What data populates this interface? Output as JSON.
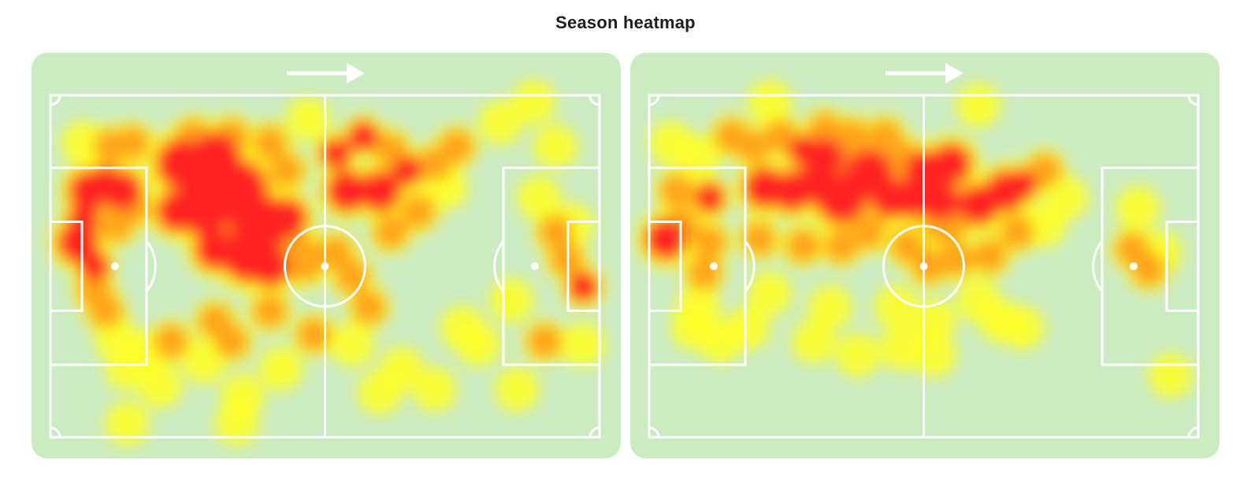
{
  "page": {
    "title": "Season heatmap"
  },
  "colors": {
    "pitch": "#cdebc2",
    "lines": "#ffffff",
    "heat_low": "#ffff22",
    "heat_mid": "#ffa51c",
    "heat_high": "#ff2121",
    "title_text": "#1e1e1e"
  },
  "icons": {
    "direction": "arrow-right-icon"
  },
  "heatmaps": [
    {
      "id": "left",
      "attack_direction": "right",
      "hotspots": [
        [
          0.05,
          0.43,
          0.04,
          1
        ],
        [
          0.06,
          0.36,
          0.03,
          0.9
        ],
        [
          0.08,
          0.5,
          0.03,
          0.9
        ],
        [
          0.07,
          0.28,
          0.04,
          0.8
        ],
        [
          0.1,
          0.25,
          0.03,
          0.8
        ],
        [
          0.13,
          0.28,
          0.04,
          0.8
        ],
        [
          0.12,
          0.38,
          0.03,
          0.7
        ],
        [
          0.15,
          0.33,
          0.03,
          0.6
        ],
        [
          0.08,
          0.57,
          0.03,
          0.6
        ],
        [
          0.1,
          0.63,
          0.03,
          0.5
        ],
        [
          0.11,
          0.15,
          0.03,
          0.5
        ],
        [
          0.15,
          0.14,
          0.03,
          0.5
        ],
        [
          0.06,
          0.14,
          0.03,
          0.4
        ],
        [
          0.24,
          0.2,
          0.05,
          1
        ],
        [
          0.3,
          0.18,
          0.05,
          0.9
        ],
        [
          0.28,
          0.32,
          0.06,
          1
        ],
        [
          0.34,
          0.28,
          0.06,
          1
        ],
        [
          0.38,
          0.38,
          0.06,
          1
        ],
        [
          0.36,
          0.47,
          0.05,
          1
        ],
        [
          0.4,
          0.5,
          0.04,
          0.9
        ],
        [
          0.23,
          0.34,
          0.04,
          0.9
        ],
        [
          0.3,
          0.45,
          0.04,
          0.9
        ],
        [
          0.43,
          0.36,
          0.04,
          0.8
        ],
        [
          0.46,
          0.48,
          0.04,
          0.7
        ],
        [
          0.33,
          0.12,
          0.03,
          0.6
        ],
        [
          0.26,
          0.12,
          0.03,
          0.6
        ],
        [
          0.4,
          0.14,
          0.03,
          0.6
        ],
        [
          0.43,
          0.22,
          0.03,
          0.6
        ],
        [
          0.52,
          0.17,
          0.03,
          0.9
        ],
        [
          0.57,
          0.12,
          0.03,
          0.8
        ],
        [
          0.54,
          0.28,
          0.04,
          1
        ],
        [
          0.6,
          0.28,
          0.04,
          0.9
        ],
        [
          0.65,
          0.22,
          0.03,
          0.8
        ],
        [
          0.62,
          0.16,
          0.03,
          0.6
        ],
        [
          0.7,
          0.2,
          0.03,
          0.6
        ],
        [
          0.74,
          0.15,
          0.03,
          0.5
        ],
        [
          0.52,
          0.46,
          0.03,
          0.7
        ],
        [
          0.55,
          0.53,
          0.03,
          0.6
        ],
        [
          0.62,
          0.4,
          0.03,
          0.5
        ],
        [
          0.67,
          0.34,
          0.03,
          0.5
        ],
        [
          0.72,
          0.27,
          0.03,
          0.4
        ],
        [
          0.58,
          0.62,
          0.03,
          0.5
        ],
        [
          0.3,
          0.66,
          0.03,
          0.6
        ],
        [
          0.22,
          0.72,
          0.03,
          0.5
        ],
        [
          0.33,
          0.72,
          0.03,
          0.5
        ],
        [
          0.4,
          0.63,
          0.03,
          0.5
        ],
        [
          0.42,
          0.8,
          0.03,
          0.4
        ],
        [
          0.48,
          0.7,
          0.03,
          0.5
        ],
        [
          0.55,
          0.73,
          0.03,
          0.4
        ],
        [
          0.18,
          0.75,
          0.03,
          0.4
        ],
        [
          0.14,
          0.8,
          0.03,
          0.4
        ],
        [
          0.12,
          0.71,
          0.03,
          0.4
        ],
        [
          0.2,
          0.85,
          0.03,
          0.3
        ],
        [
          0.28,
          0.78,
          0.03,
          0.3
        ],
        [
          0.35,
          0.88,
          0.03,
          0.3
        ],
        [
          0.64,
          0.8,
          0.03,
          0.4
        ],
        [
          0.7,
          0.86,
          0.03,
          0.3
        ],
        [
          0.78,
          0.73,
          0.03,
          0.3
        ],
        [
          0.75,
          0.68,
          0.03,
          0.3
        ],
        [
          0.84,
          0.6,
          0.03,
          0.3
        ],
        [
          0.97,
          0.56,
          0.03,
          0.8
        ],
        [
          0.94,
          0.48,
          0.03,
          0.5
        ],
        [
          0.92,
          0.4,
          0.03,
          0.5
        ],
        [
          0.95,
          0.38,
          0.03,
          0.4
        ],
        [
          0.9,
          0.72,
          0.03,
          0.6
        ],
        [
          0.97,
          0.73,
          0.03,
          0.3
        ],
        [
          0.89,
          0.3,
          0.03,
          0.3
        ],
        [
          0.92,
          0.15,
          0.03,
          0.3
        ],
        [
          0.82,
          0.08,
          0.03,
          0.3
        ],
        [
          0.88,
          0.02,
          0.03,
          0.3
        ],
        [
          0.47,
          0.07,
          0.03,
          0.3
        ],
        [
          0.14,
          0.96,
          0.03,
          0.3
        ],
        [
          0.34,
          0.96,
          0.03,
          0.3
        ],
        [
          0.6,
          0.87,
          0.03,
          0.3
        ],
        [
          0.85,
          0.86,
          0.03,
          0.3
        ]
      ]
    },
    {
      "id": "right",
      "attack_direction": "right",
      "hotspots": [
        [
          0.03,
          0.42,
          0.04,
          1
        ],
        [
          0.06,
          0.38,
          0.03,
          0.7
        ],
        [
          0.11,
          0.3,
          0.03,
          0.8
        ],
        [
          0.11,
          0.43,
          0.03,
          0.6
        ],
        [
          0.1,
          0.52,
          0.03,
          0.6
        ],
        [
          0.04,
          0.14,
          0.03,
          0.4
        ],
        [
          0.09,
          0.18,
          0.03,
          0.4
        ],
        [
          0.05,
          0.28,
          0.03,
          0.5
        ],
        [
          0.09,
          0.62,
          0.03,
          0.4
        ],
        [
          0.15,
          0.12,
          0.03,
          0.5
        ],
        [
          0.19,
          0.15,
          0.03,
          0.7
        ],
        [
          0.24,
          0.12,
          0.03,
          0.7
        ],
        [
          0.28,
          0.16,
          0.03,
          0.8
        ],
        [
          0.32,
          0.1,
          0.03,
          0.6
        ],
        [
          0.21,
          0.27,
          0.04,
          0.9
        ],
        [
          0.26,
          0.28,
          0.04,
          0.9
        ],
        [
          0.3,
          0.26,
          0.04,
          0.9
        ],
        [
          0.35,
          0.3,
          0.05,
          1
        ],
        [
          0.4,
          0.23,
          0.05,
          1
        ],
        [
          0.44,
          0.3,
          0.04,
          1
        ],
        [
          0.48,
          0.3,
          0.04,
          1
        ],
        [
          0.5,
          0.22,
          0.04,
          0.9
        ],
        [
          0.53,
          0.31,
          0.04,
          1
        ],
        [
          0.55,
          0.2,
          0.04,
          1
        ],
        [
          0.6,
          0.32,
          0.04,
          1
        ],
        [
          0.65,
          0.28,
          0.04,
          0.9
        ],
        [
          0.68,
          0.26,
          0.03,
          0.8
        ],
        [
          0.32,
          0.18,
          0.04,
          0.8
        ],
        [
          0.37,
          0.12,
          0.03,
          0.7
        ],
        [
          0.43,
          0.12,
          0.03,
          0.6
        ],
        [
          0.46,
          0.18,
          0.03,
          0.7
        ],
        [
          0.47,
          0.44,
          0.03,
          0.7
        ],
        [
          0.51,
          0.5,
          0.03,
          0.5
        ],
        [
          0.54,
          0.37,
          0.04,
          0.6
        ],
        [
          0.4,
          0.4,
          0.03,
          0.6
        ],
        [
          0.35,
          0.44,
          0.03,
          0.6
        ],
        [
          0.28,
          0.44,
          0.03,
          0.5
        ],
        [
          0.2,
          0.42,
          0.03,
          0.5
        ],
        [
          0.56,
          0.48,
          0.03,
          0.5
        ],
        [
          0.62,
          0.47,
          0.03,
          0.5
        ],
        [
          0.67,
          0.4,
          0.03,
          0.5
        ],
        [
          0.6,
          0.6,
          0.03,
          0.4
        ],
        [
          0.64,
          0.66,
          0.03,
          0.4
        ],
        [
          0.52,
          0.66,
          0.03,
          0.4
        ],
        [
          0.45,
          0.62,
          0.03,
          0.4
        ],
        [
          0.33,
          0.62,
          0.03,
          0.4
        ],
        [
          0.3,
          0.72,
          0.03,
          0.3
        ],
        [
          0.22,
          0.58,
          0.03,
          0.3
        ],
        [
          0.18,
          0.68,
          0.03,
          0.3
        ],
        [
          0.13,
          0.72,
          0.03,
          0.3
        ],
        [
          0.08,
          0.68,
          0.03,
          0.3
        ],
        [
          0.38,
          0.76,
          0.03,
          0.3
        ],
        [
          0.52,
          0.76,
          0.03,
          0.3
        ],
        [
          0.46,
          0.74,
          0.03,
          0.3
        ],
        [
          0.72,
          0.22,
          0.03,
          0.5
        ],
        [
          0.76,
          0.3,
          0.03,
          0.4
        ],
        [
          0.72,
          0.38,
          0.03,
          0.4
        ],
        [
          0.68,
          0.68,
          0.03,
          0.3
        ],
        [
          0.88,
          0.45,
          0.03,
          0.5
        ],
        [
          0.91,
          0.51,
          0.03,
          0.6
        ],
        [
          0.93,
          0.46,
          0.03,
          0.4
        ],
        [
          0.89,
          0.33,
          0.03,
          0.3
        ],
        [
          0.95,
          0.82,
          0.03,
          0.3
        ],
        [
          0.6,
          0.03,
          0.03,
          0.3
        ],
        [
          0.22,
          0.02,
          0.03,
          0.3
        ]
      ]
    }
  ]
}
